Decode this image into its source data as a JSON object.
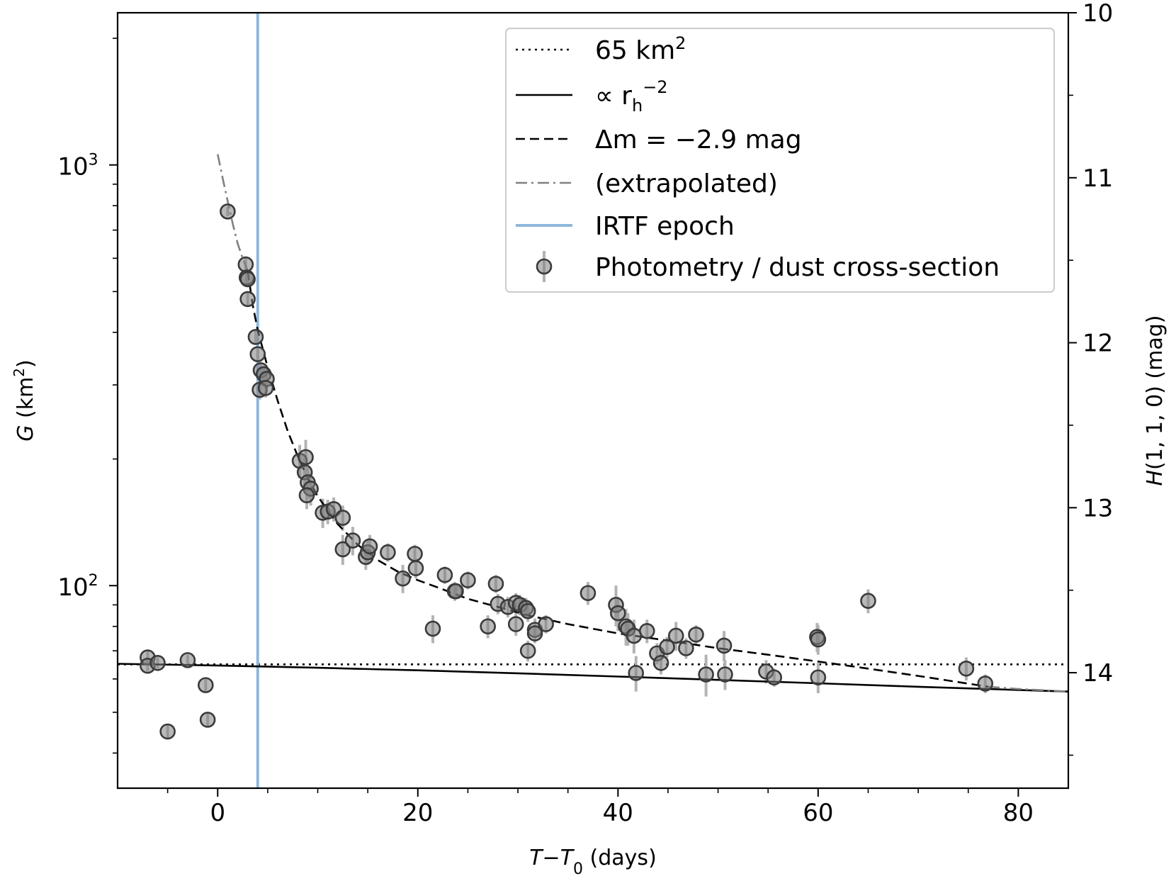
{
  "chart_data": {
    "type": "scatter",
    "title": "",
    "xlabel": "T−T₀ (days)",
    "xlabel_parts": {
      "t": "T",
      "minus": "−",
      "t0": "T",
      "t0_sub": "0",
      "unit": " (days)"
    },
    "ylabel": "G (km²)",
    "ylabel_parts": {
      "var": "G",
      "unit": " (km",
      "sup": "2",
      "close": ")"
    },
    "ylabel_right": "H(1,1,0) (mag)",
    "ylabel_right_parts": {
      "var": "H",
      "args": "(1, 1, 0)",
      "unit": " (mag)"
    },
    "xlim": [
      -10,
      85
    ],
    "ylim": [
      33,
      2300
    ],
    "yscale": "log",
    "ylim_right": [
      10,
      14.7
    ],
    "x_ticks": [
      0,
      20,
      40,
      60,
      80
    ],
    "x_tick_labels": [
      "0",
      "20",
      "40",
      "60",
      "80"
    ],
    "x_minor_ticks": [
      -5,
      5,
      10,
      15,
      25,
      30,
      35,
      45,
      50,
      55,
      65,
      70,
      75
    ],
    "y_major_ticks": [
      100,
      1000
    ],
    "y_tick_labels": [
      {
        "base": "10",
        "exp": "2"
      },
      {
        "base": "10",
        "exp": "3"
      }
    ],
    "y_minor_ticks": [
      40,
      50,
      60,
      70,
      80,
      90,
      200,
      300,
      400,
      500,
      600,
      700,
      800,
      900,
      2000
    ],
    "y_right_ticks": [
      10,
      11,
      12,
      13,
      14
    ],
    "y_right_tick_labels": [
      "10",
      "11",
      "12",
      "13",
      "14"
    ],
    "y_right_minor_ticks": [
      10.5,
      11.5,
      12.5,
      13.5,
      14.5
    ],
    "reference_level": 65,
    "irtf_epoch": 4,
    "legend": {
      "position": "upper right",
      "entries": [
        {
          "key": "dotted",
          "label": "65 km",
          "sup": "2",
          "style": "dotted",
          "color": "#000000"
        },
        {
          "key": "solid",
          "label": "∝ r",
          "sub": "h",
          "sup": "−2",
          "style": "solid",
          "color": "#000000"
        },
        {
          "key": "dashed",
          "label": "Δm = −2.9 mag",
          "style": "dashed",
          "color": "#000000"
        },
        {
          "key": "dashdot",
          "label": "(extrapolated)",
          "style": "dashdot",
          "color": "#808080"
        },
        {
          "key": "irtf",
          "label": "IRTF epoch",
          "style": "solid",
          "color": "#8fb8dc"
        },
        {
          "key": "points",
          "label": "Photometry / dust cross-section",
          "style": "marker",
          "color": "#808080"
        }
      ]
    },
    "series": [
      {
        "name": "65 km²",
        "style": "dotted",
        "color": "#000000",
        "x": [
          -10,
          85
        ],
        "y": [
          65,
          65
        ]
      },
      {
        "name": "∝ r_h^−2",
        "style": "solid",
        "color": "#000000",
        "x": [
          -10,
          0,
          10,
          20,
          30,
          40,
          50,
          60,
          70,
          80,
          85
        ],
        "y": [
          65.2,
          64.6,
          63.8,
          62.9,
          61.9,
          60.8,
          59.7,
          58.6,
          57.5,
          56.5,
          56.0
        ]
      },
      {
        "name": "Δm = −2.9 mag",
        "style": "dashed",
        "color": "#000000",
        "x": [
          3.0,
          3.5,
          4.0,
          5.0,
          6.0,
          7.0,
          8.0,
          9.0,
          10.0,
          12.0,
          14.0,
          16.0,
          18.0,
          20.0,
          22.0,
          25.0,
          28.0,
          31.0,
          35.0,
          40.0,
          45.0,
          50.0,
          55.0,
          60.0,
          65.0,
          70.0,
          77.0
        ],
        "y": [
          560,
          465,
          405,
          330,
          275,
          233,
          203,
          180,
          163,
          140,
          125,
          115,
          108,
          103,
          99,
          93,
          89,
          85,
          81,
          77,
          74,
          71.0,
          68.5,
          66.0,
          63.5,
          61.0,
          57.5
        ]
      },
      {
        "name": "(extrapolated)",
        "style": "dashdot",
        "color": "#808080",
        "x": [
          0,
          0.5,
          1.0,
          1.5,
          2.0,
          2.5,
          3.0
        ],
        "y": [
          1060,
          930,
          820,
          725,
          650,
          600,
          560
        ]
      },
      {
        "name": "(extrapolated) tail",
        "style": "dashdot",
        "color": "#808080",
        "x": [
          77,
          80,
          85
        ],
        "y": [
          57.5,
          56.8,
          56.0
        ]
      },
      {
        "name": "IRTF epoch",
        "style": "vline",
        "color": "#8fb8dc",
        "x": [
          4,
          4
        ],
        "y": [
          33,
          2300
        ]
      },
      {
        "name": "Photometry / dust cross-section",
        "style": "marker",
        "color": "#808080",
        "points": [
          {
            "x": -7.0,
            "y": 67.5,
            "err": 2.5
          },
          {
            "x": -7.0,
            "y": 64.5,
            "err": 2.0
          },
          {
            "x": -6.0,
            "y": 65.5,
            "err": 2.0
          },
          {
            "x": -5.0,
            "y": 45.0,
            "err": 1.5
          },
          {
            "x": -3.0,
            "y": 66.5,
            "err": 2.0
          },
          {
            "x": -1.2,
            "y": 58.0,
            "err": 2.0
          },
          {
            "x": -1.0,
            "y": 48.0,
            "err": 2.0
          },
          {
            "x": 1.0,
            "y": 775,
            "err": 20
          },
          {
            "x": 2.8,
            "y": 580,
            "err": 25
          },
          {
            "x": 2.9,
            "y": 540,
            "err": 25
          },
          {
            "x": 3.0,
            "y": 535,
            "err": 20
          },
          {
            "x": 3.0,
            "y": 480,
            "err": 20
          },
          {
            "x": 3.8,
            "y": 390,
            "err": 15
          },
          {
            "x": 4.0,
            "y": 355,
            "err": 15
          },
          {
            "x": 4.3,
            "y": 325,
            "err": 15
          },
          {
            "x": 4.6,
            "y": 318,
            "err": 15
          },
          {
            "x": 4.9,
            "y": 310,
            "err": 15
          },
          {
            "x": 4.2,
            "y": 292,
            "err": 15
          },
          {
            "x": 4.8,
            "y": 295,
            "err": 15
          },
          {
            "x": 8.2,
            "y": 198,
            "err": 18
          },
          {
            "x": 8.8,
            "y": 202,
            "err": 20
          },
          {
            "x": 8.7,
            "y": 186,
            "err": 15
          },
          {
            "x": 9.0,
            "y": 176,
            "err": 15
          },
          {
            "x": 9.3,
            "y": 170,
            "err": 15
          },
          {
            "x": 8.9,
            "y": 164,
            "err": 12
          },
          {
            "x": 10.5,
            "y": 149,
            "err": 12
          },
          {
            "x": 11.0,
            "y": 150,
            "err": 10
          },
          {
            "x": 11.6,
            "y": 152,
            "err": 10
          },
          {
            "x": 12.5,
            "y": 145,
            "err": 10
          },
          {
            "x": 12.5,
            "y": 122,
            "err": 10
          },
          {
            "x": 13.5,
            "y": 128,
            "err": 10
          },
          {
            "x": 14.8,
            "y": 117,
            "err": 8
          },
          {
            "x": 15.0,
            "y": 120,
            "err": 8
          },
          {
            "x": 15.2,
            "y": 124,
            "err": 8
          },
          {
            "x": 17.0,
            "y": 120,
            "err": 6
          },
          {
            "x": 18.5,
            "y": 104,
            "err": 8
          },
          {
            "x": 19.7,
            "y": 119,
            "err": 6
          },
          {
            "x": 19.8,
            "y": 110,
            "err": 6
          },
          {
            "x": 21.5,
            "y": 79,
            "err": 6
          },
          {
            "x": 22.7,
            "y": 106,
            "err": 5
          },
          {
            "x": 23.7,
            "y": 97,
            "err": 5
          },
          {
            "x": 23.8,
            "y": 97,
            "err": 4
          },
          {
            "x": 25.0,
            "y": 103,
            "err": 5
          },
          {
            "x": 27.0,
            "y": 80,
            "err": 5
          },
          {
            "x": 27.8,
            "y": 101,
            "err": 5
          },
          {
            "x": 28.0,
            "y": 90.5,
            "err": 5
          },
          {
            "x": 29.0,
            "y": 89,
            "err": 5
          },
          {
            "x": 29.8,
            "y": 91,
            "err": 5
          },
          {
            "x": 30.2,
            "y": 90,
            "err": 5
          },
          {
            "x": 30.8,
            "y": 88.5,
            "err": 5
          },
          {
            "x": 31.0,
            "y": 87,
            "err": 5
          },
          {
            "x": 29.8,
            "y": 81,
            "err": 5
          },
          {
            "x": 31.7,
            "y": 78.5,
            "err": 5
          },
          {
            "x": 31.0,
            "y": 70,
            "err": 4
          },
          {
            "x": 31.7,
            "y": 77,
            "err": 4
          },
          {
            "x": 32.8,
            "y": 81,
            "err": 4
          },
          {
            "x": 37.0,
            "y": 96,
            "err": 6
          },
          {
            "x": 39.8,
            "y": 90,
            "err": 10
          },
          {
            "x": 40.0,
            "y": 86,
            "err": 8
          },
          {
            "x": 40.8,
            "y": 80,
            "err": 8
          },
          {
            "x": 41.0,
            "y": 79,
            "err": 7
          },
          {
            "x": 41.6,
            "y": 76,
            "err": 7
          },
          {
            "x": 42.9,
            "y": 78,
            "err": 5
          },
          {
            "x": 41.8,
            "y": 62,
            "err": 6
          },
          {
            "x": 43.9,
            "y": 69,
            "err": 4
          },
          {
            "x": 44.3,
            "y": 65.5,
            "err": 4
          },
          {
            "x": 44.9,
            "y": 71.5,
            "err": 4
          },
          {
            "x": 45.8,
            "y": 76,
            "err": 6
          },
          {
            "x": 46.8,
            "y": 71,
            "err": 4
          },
          {
            "x": 47.8,
            "y": 76.5,
            "err": 4
          },
          {
            "x": 48.8,
            "y": 61.5,
            "err": 7
          },
          {
            "x": 50.6,
            "y": 72,
            "err": 6
          },
          {
            "x": 50.7,
            "y": 61.5,
            "err": 5
          },
          {
            "x": 54.8,
            "y": 62.5,
            "err": 4
          },
          {
            "x": 55.6,
            "y": 60.5,
            "err": 3
          },
          {
            "x": 59.9,
            "y": 75.5,
            "err": 6
          },
          {
            "x": 60.0,
            "y": 74.5,
            "err": 6
          },
          {
            "x": 60.0,
            "y": 60.5,
            "err": 5
          },
          {
            "x": 65.0,
            "y": 92,
            "err": 6
          },
          {
            "x": 74.8,
            "y": 63.5,
            "err": 4
          },
          {
            "x": 76.7,
            "y": 58.5,
            "err": 3
          }
        ]
      }
    ]
  }
}
